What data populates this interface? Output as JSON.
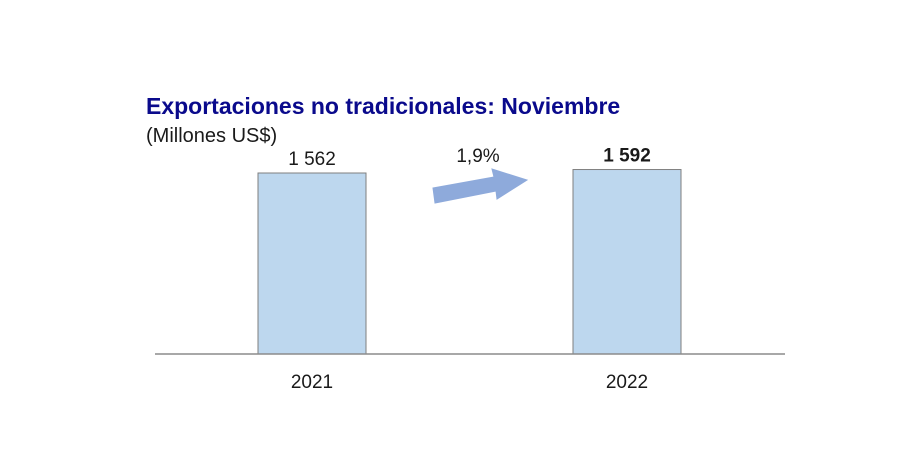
{
  "chart_data": {
    "type": "bar",
    "title": "Exportaciones no tradicionales: Noviembre",
    "subtitle": "(Millones US$)",
    "categories": [
      "2021",
      "2022"
    ],
    "values": [
      1562,
      1592
    ],
    "value_labels": [
      "1 562",
      "1 592"
    ],
    "bold_labels": [
      false,
      true
    ],
    "change_label": "1,9%",
    "bar_color": "#bdd7ee",
    "bar_border_color": "#7f7f7f",
    "arrow_color": "#8eaadb",
    "title_color": "#0a0a8c",
    "ylim": [
      0,
      1600
    ],
    "grid": false
  }
}
